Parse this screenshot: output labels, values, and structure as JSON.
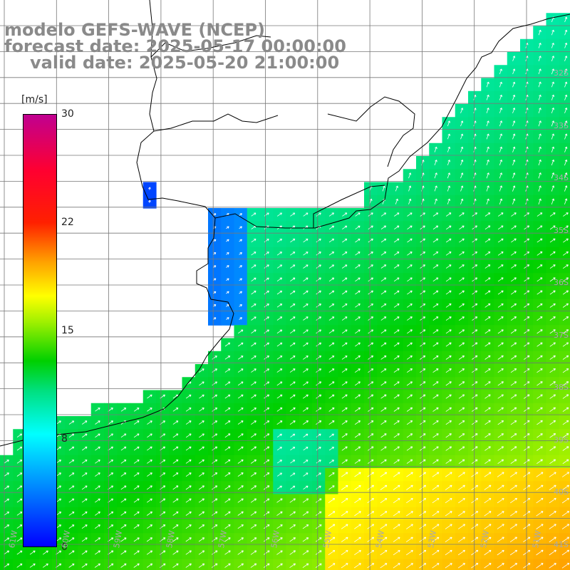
{
  "title": {
    "line1": "modelo GEFS-WAVE (NCEP)",
    "line2": "forecast date: 2025-05-17 00:00:00",
    "line3": "valid date: 2025-05-20 21:00:00"
  },
  "colorbar": {
    "units": "[m/s]",
    "ticks": [
      "30",
      "22",
      "15",
      "8",
      "0"
    ],
    "tick_values": [
      30,
      22,
      15,
      8,
      0
    ]
  },
  "lat_labels": [
    "32S",
    "33S",
    "34S",
    "35S",
    "36S",
    "37S",
    "38S",
    "39S",
    "40S",
    "41S"
  ],
  "lon_labels": [
    "61W",
    "60W",
    "59W",
    "58W",
    "57W",
    "56W",
    "55W",
    "54W",
    "53W",
    "52W",
    "51W"
  ],
  "colors": {
    "land": "#ffffff",
    "grid": "#777777",
    "coast": "#000000",
    "arrow": "#ffffff"
  }
}
